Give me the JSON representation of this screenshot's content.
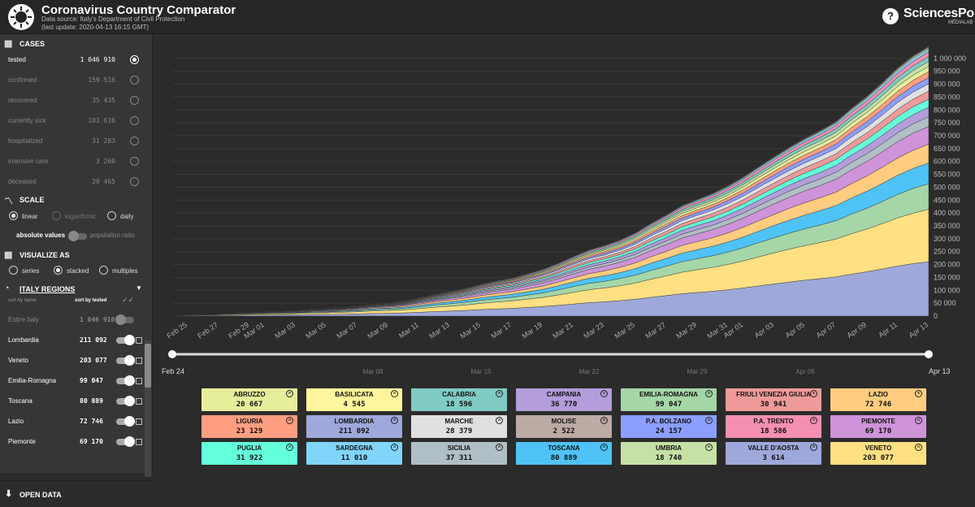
{
  "header": {
    "title": "Coronavirus Country Comparator",
    "source": "Data source: Italy's Department of Civil Protection",
    "updated": "(last update: 2020-04-13 16:15 GMT)",
    "help": "?",
    "brand": "SciencesPo",
    "brand_sub": "MÉDIALAB"
  },
  "sidebar": {
    "cases_title": "CASES",
    "cases": [
      {
        "label": "tested",
        "value": "1 046 910",
        "selected": true
      },
      {
        "label": "confirmed",
        "value": "159 516"
      },
      {
        "label": "recovered",
        "value": "35 435"
      },
      {
        "label": "currently sick",
        "value": "103 616"
      },
      {
        "label": "hospitalized",
        "value": "31 283"
      },
      {
        "label": "intensive care",
        "value": "3 260"
      },
      {
        "label": "deceased",
        "value": "20 465"
      }
    ],
    "scale_title": "SCALE",
    "scale_options": [
      "linear",
      "logarithmic",
      "daily"
    ],
    "absolute_label": "absolute values",
    "ratio_label": "population ratio",
    "viz_title": "VISUALIZE AS",
    "viz_options": [
      "series",
      "stacked",
      "multiples"
    ],
    "regions_title": "ITALY REGIONS",
    "sort_name": "sort by name",
    "sort_tested": "sort by tested",
    "regions": [
      {
        "name": "Entire Italy",
        "value": "1 046 910",
        "dim": true
      },
      {
        "name": "Lombardia",
        "value": "211 092"
      },
      {
        "name": "Veneto",
        "value": "203 077"
      },
      {
        "name": "Emilia-Romagna",
        "value": "99 047"
      },
      {
        "name": "Toscana",
        "value": "80 889"
      },
      {
        "name": "Lazio",
        "value": "72 746"
      },
      {
        "name": "Piemonte",
        "value": "69 170"
      }
    ],
    "open_data": "OPEN DATA"
  },
  "slider": {
    "start": "Feb 24",
    "end": "Apr 13",
    "ticks": [
      "Mar 08",
      "Mar 15",
      "Mar 22",
      "Mar 29",
      "Apr 05"
    ]
  },
  "chart_data": {
    "type": "area",
    "stacked": true,
    "x": [
      "Feb 24",
      "Feb 25",
      "Feb 26",
      "Feb 27",
      "Feb 28",
      "Feb 29",
      "Mar 01",
      "Mar 02",
      "Mar 03",
      "Mar 04",
      "Mar 05",
      "Mar 06",
      "Mar 07",
      "Mar 08",
      "Mar 09",
      "Mar 10",
      "Mar 11",
      "Mar 12",
      "Mar 13",
      "Mar 14",
      "Mar 15",
      "Mar 16",
      "Mar 17",
      "Mar 18",
      "Mar 19",
      "Mar 20",
      "Mar 21",
      "Mar 22",
      "Mar 23",
      "Mar 24",
      "Mar 25",
      "Mar 26",
      "Mar 27",
      "Mar 28",
      "Mar 29",
      "Mar 30",
      "Mar 31",
      "Apr 01",
      "Apr 02",
      "Apr 03",
      "Apr 04",
      "Apr 05",
      "Apr 06",
      "Apr 07",
      "Apr 08",
      "Apr 09",
      "Apr 10",
      "Apr 11",
      "Apr 12",
      "Apr 13"
    ],
    "xticks": [
      "Feb 25",
      "Feb 27",
      "Feb 29",
      "Mar 01",
      "Mar 03",
      "Mar 05",
      "Mar 07",
      "Mar 09",
      "Mar 11",
      "Mar 13",
      "Mar 15",
      "Mar 17",
      "Mar 19",
      "Mar 21",
      "Mar 23",
      "Mar 25",
      "Mar 27",
      "Mar 29",
      "Mar 31",
      "Apr 01",
      "Apr 03",
      "Apr 05",
      "Apr 07",
      "Apr 09",
      "Apr 11",
      "Apr 13"
    ],
    "yticks": [
      0,
      50000,
      100000,
      150000,
      200000,
      250000,
      300000,
      350000,
      400000,
      450000,
      500000,
      550000,
      600000,
      650000,
      700000,
      750000,
      800000,
      850000,
      900000,
      950000,
      1000000
    ],
    "ytick_labels": [
      "0",
      "50 000",
      "100 000",
      "150 000",
      "200 000",
      "250 000",
      "300 000",
      "350 000",
      "400 000",
      "450 000",
      "500 000",
      "550 000",
      "600 000",
      "650 000",
      "700 000",
      "750 000",
      "800 000",
      "850 000",
      "900 000",
      "950 000",
      "1 000 000"
    ],
    "ylim": [
      0,
      1050000
    ],
    "total": [
      4324,
      8623,
      9587,
      12014,
      15695,
      18661,
      21127,
      23345,
      25856,
      29837,
      32362,
      36359,
      42062,
      49937,
      53826,
      60761,
      73154,
      86011,
      97488,
      109170,
      124899,
      137962,
      148657,
      165541,
      182777,
      206886,
      233222,
      258402,
      275468,
      296964,
      324445,
      361060,
      394079,
      429526,
      454030,
      477359,
      506968,
      541423,
      581232,
      619849,
      657224,
      691461,
      721732,
      755445,
      807125,
      853369,
      906864,
      963473,
      1010193,
      1046910
    ],
    "series": [
      {
        "name": "Lombardia",
        "value": 211092,
        "color": "#9fa8da"
      },
      {
        "name": "Veneto",
        "value": 203077,
        "color": "#ffe082"
      },
      {
        "name": "Emilia-Romagna",
        "value": 99047,
        "color": "#a5d6a7"
      },
      {
        "name": "Toscana",
        "value": 80889,
        "color": "#4fc3f7"
      },
      {
        "name": "Lazio",
        "value": 72746,
        "color": "#ffcc80"
      },
      {
        "name": "Piemonte",
        "value": 69170,
        "color": "#ce93d8"
      },
      {
        "name": "Sicilia",
        "value": 37311,
        "color": "#b0bec5"
      },
      {
        "name": "Campania",
        "value": 36770,
        "color": "#b39ddb"
      },
      {
        "name": "Puglia",
        "value": 31922,
        "color": "#64ffda"
      },
      {
        "name": "Friuli Venezia Giulia",
        "value": 30941,
        "color": "#ef9a9a"
      },
      {
        "name": "Marche",
        "value": 28379,
        "color": "#e0e0e0"
      },
      {
        "name": "P.A. Bolzano",
        "value": 24157,
        "color": "#8c9eff"
      },
      {
        "name": "Liguria",
        "value": 23129,
        "color": "#ff9e80"
      },
      {
        "name": "Abruzzo",
        "value": 20667,
        "color": "#e6ee9c"
      },
      {
        "name": "Umbria",
        "value": 18740,
        "color": "#c5e1a5"
      },
      {
        "name": "Calabria",
        "value": 18596,
        "color": "#80cbc4"
      },
      {
        "name": "P.A. Trento",
        "value": 18586,
        "color": "#f48fb1"
      },
      {
        "name": "Sardegna",
        "value": 11010,
        "color": "#81d4fa"
      },
      {
        "name": "Basilicata",
        "value": 4545,
        "color": "#fff59d"
      },
      {
        "name": "Valle d'Aosta",
        "value": 3614,
        "color": "#9fa8da"
      },
      {
        "name": "Molise",
        "value": 2522,
        "color": "#bcaaa4"
      }
    ]
  },
  "cards": [
    {
      "name": "ABRUZZO",
      "value": "20 667",
      "color": "#e6ee9c"
    },
    {
      "name": "BASILICATA",
      "value": "4 545",
      "color": "#fff59d"
    },
    {
      "name": "CALABRIA",
      "value": "18 596",
      "color": "#80cbc4"
    },
    {
      "name": "CAMPANIA",
      "value": "36 770",
      "color": "#b39ddb"
    },
    {
      "name": "EMILIA-ROMAGNA",
      "value": "99 047",
      "color": "#a5d6a7"
    },
    {
      "name": "FRIULI VENEZIA GIULIA",
      "value": "30 941",
      "color": "#ef9a9a"
    },
    {
      "name": "LAZIO",
      "value": "72 746",
      "color": "#ffcc80"
    },
    {
      "name": "LIGURIA",
      "value": "23 129",
      "color": "#ff9e80"
    },
    {
      "name": "LOMBARDIA",
      "value": "211 092",
      "color": "#9fa8da"
    },
    {
      "name": "MARCHE",
      "value": "28 379",
      "color": "#e0e0e0"
    },
    {
      "name": "MOLISE",
      "value": "2 522",
      "color": "#bcaaa4"
    },
    {
      "name": "P.A. BOLZANO",
      "value": "24 157",
      "color": "#8c9eff"
    },
    {
      "name": "P.A. TRENTO",
      "value": "18 586",
      "color": "#f48fb1"
    },
    {
      "name": "PIEMONTE",
      "value": "69 170",
      "color": "#ce93d8"
    },
    {
      "name": "PUGLIA",
      "value": "31 922",
      "color": "#64ffda"
    },
    {
      "name": "SARDEGNA",
      "value": "11 010",
      "color": "#81d4fa"
    },
    {
      "name": "SICILIA",
      "value": "37 311",
      "color": "#b0bec5"
    },
    {
      "name": "TOSCANA",
      "value": "80 889",
      "color": "#4fc3f7"
    },
    {
      "name": "UMBRIA",
      "value": "18 740",
      "color": "#c5e1a5"
    },
    {
      "name": "VALLE D'AOSTA",
      "value": "3 614",
      "color": "#9fa8da"
    },
    {
      "name": "VENETO",
      "value": "203 077",
      "color": "#ffe082"
    }
  ]
}
